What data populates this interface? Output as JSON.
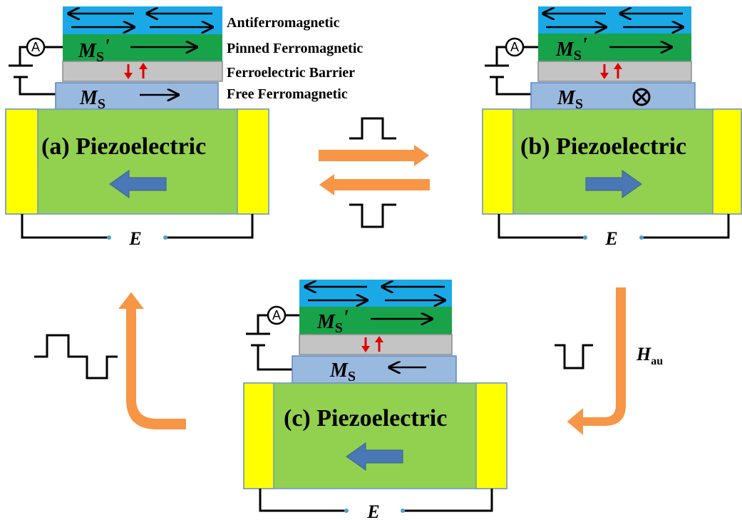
{
  "layer_labels": {
    "antiferromagnetic": "Antiferromagnetic",
    "pinned": "Pinned Ferromagnetic",
    "barrier": "Ferroelectric Barrier",
    "free": "Free Ferromagnetic"
  },
  "panels": {
    "a": {
      "label": "(a) Piezoelectric"
    },
    "b": {
      "label": "(b) Piezoelectric"
    },
    "c": {
      "label": "(c) Piezoelectric"
    }
  },
  "symbols": {
    "pinned_moment": "M",
    "pinned_sub": "S",
    "prime": "'",
    "free_moment": "M",
    "free_sub": "S",
    "field_E": "E",
    "ammeter": "A",
    "h_main": "H",
    "h_sub": "au"
  },
  "colors": {
    "antiferromagnetic": "#1aa9e6",
    "pinned": "#18a34a",
    "barrier": "#c4c4c4",
    "free": "#9ab9df",
    "piezo": "#92d050",
    "electrode": "#ffff00",
    "polarization_arrow": "#4a77b5",
    "transition_arrow": "#f79646",
    "ferroelectric_arrow": "#e00000"
  },
  "states": {
    "a": {
      "piezo_polarization": "left",
      "free_magnetization": "right"
    },
    "b": {
      "piezo_polarization": "right",
      "free_magnetization": "into-page"
    },
    "c": {
      "piezo_polarization": "left",
      "free_magnetization": "left"
    }
  }
}
